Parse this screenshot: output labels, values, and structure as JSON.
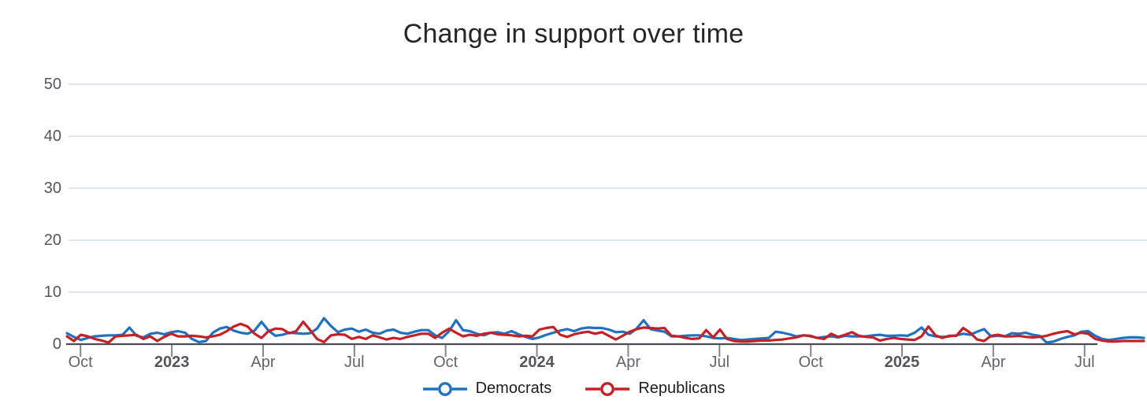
{
  "chart": {
    "title": "Change in support over time",
    "series": [
      {
        "name": "Democrats",
        "color": "#2171c2"
      },
      {
        "name": "Republicans",
        "color": "#c42126"
      }
    ]
  },
  "chart_data": {
    "type": "line",
    "title": "Change in support over time",
    "xlabel": "",
    "ylabel": "",
    "ylim": [
      0,
      50
    ],
    "y_ticks": [
      0,
      10,
      20,
      30,
      40,
      50
    ],
    "grid": true,
    "legend_position": "bottom-center",
    "x_unit": "weeks (Sep 2022 - Sep 2025)",
    "x_ticks": [
      {
        "label": "Oct",
        "week": 1.95,
        "bold": false
      },
      {
        "label": "2023",
        "week": 15.09,
        "bold": true
      },
      {
        "label": "Apr",
        "week": 28.23,
        "bold": false
      },
      {
        "label": "Jul",
        "week": 41.37,
        "bold": false
      },
      {
        "label": "Oct",
        "week": 54.5,
        "bold": false
      },
      {
        "label": "2024",
        "week": 67.64,
        "bold": true
      },
      {
        "label": "Apr",
        "week": 80.78,
        "bold": false
      },
      {
        "label": "Jul",
        "week": 93.92,
        "bold": false
      },
      {
        "label": "Oct",
        "week": 107.06,
        "bold": false
      },
      {
        "label": "2025",
        "week": 120.19,
        "bold": true
      },
      {
        "label": "Apr",
        "week": 133.33,
        "bold": false
      },
      {
        "label": "Jul",
        "week": 146.47,
        "bold": false
      }
    ],
    "series": [
      {
        "name": "Democrats",
        "color": "#2171c2",
        "values": [
          2.1,
          1.4,
          0.8,
          1.2,
          1.5,
          1.6,
          1.7,
          1.7,
          1.8,
          3.2,
          1.6,
          1.3,
          2.0,
          2.2,
          1.9,
          2.3,
          2.5,
          2.2,
          1.0,
          0.4,
          0.6,
          2.2,
          3.0,
          3.3,
          2.6,
          2.2,
          2.0,
          2.6,
          4.3,
          2.6,
          1.6,
          1.8,
          2.2,
          2.1,
          2.0,
          2.1,
          3.0,
          5.0,
          3.5,
          2.3,
          2.8,
          3.0,
          2.4,
          2.8,
          2.2,
          2.0,
          2.6,
          2.8,
          2.2,
          2.0,
          2.4,
          2.7,
          2.7,
          1.7,
          1.2,
          2.5,
          4.6,
          2.7,
          2.5,
          2.0,
          1.7,
          2.2,
          2.3,
          2.0,
          2.5,
          1.9,
          1.4,
          1.0,
          1.3,
          1.8,
          2.2,
          2.6,
          2.9,
          2.5,
          3.0,
          3.2,
          3.1,
          3.1,
          2.8,
          2.3,
          2.4,
          2.0,
          3.0,
          4.6,
          2.9,
          2.6,
          2.4,
          1.5,
          1.5,
          1.6,
          1.7,
          1.7,
          1.5,
          1.2,
          1.1,
          1.2,
          1.0,
          0.8,
          0.9,
          1.0,
          1.1,
          1.2,
          2.4,
          2.2,
          1.9,
          1.5,
          1.7,
          1.5,
          1.2,
          1.4,
          1.5,
          1.3,
          1.6,
          1.5,
          1.5,
          1.5,
          1.7,
          1.8,
          1.6,
          1.6,
          1.7,
          1.6,
          2.2,
          3.2,
          1.8,
          1.5,
          1.4,
          1.5,
          1.7,
          2.0,
          1.8,
          2.4,
          2.9,
          1.5,
          1.6,
          1.5,
          2.1,
          2.0,
          2.2,
          1.8,
          1.6,
          0.3,
          0.5,
          1.0,
          1.4,
          1.7,
          2.4,
          2.5,
          1.6,
          1.0,
          0.8,
          1.0,
          1.2,
          1.3,
          1.3,
          1.2
        ]
      },
      {
        "name": "Republicans",
        "color": "#c42126",
        "values": [
          1.5,
          0.6,
          1.8,
          1.5,
          1.0,
          0.7,
          0.3,
          1.5,
          1.6,
          1.7,
          1.8,
          1.0,
          1.5,
          0.6,
          1.4,
          2.0,
          1.5,
          1.5,
          1.6,
          1.5,
          1.3,
          1.5,
          1.8,
          2.5,
          3.4,
          3.9,
          3.4,
          2.0,
          1.2,
          2.5,
          3.0,
          2.9,
          2.1,
          2.5,
          4.3,
          2.7,
          1.0,
          0.4,
          1.7,
          1.9,
          1.8,
          1.0,
          1.4,
          1.0,
          1.7,
          1.3,
          0.9,
          1.2,
          1.0,
          1.4,
          1.7,
          2.0,
          2.0,
          1.2,
          2.2,
          3.0,
          2.2,
          1.5,
          1.8,
          1.6,
          2.0,
          2.2,
          1.9,
          1.8,
          1.7,
          1.5,
          1.6,
          1.5,
          2.8,
          3.1,
          3.3,
          1.8,
          1.4,
          1.9,
          2.2,
          2.4,
          2.0,
          2.3,
          1.6,
          0.9,
          1.6,
          2.4,
          2.9,
          3.2,
          3.1,
          3.0,
          3.1,
          1.6,
          1.5,
          1.2,
          1.0,
          1.1,
          2.7,
          1.3,
          2.8,
          1.0,
          0.6,
          0.5,
          0.5,
          0.6,
          0.7,
          0.7,
          0.8,
          0.9,
          1.1,
          1.3,
          1.7,
          1.6,
          1.2,
          1.0,
          2.0,
          1.4,
          1.8,
          2.3,
          1.6,
          1.4,
          1.3,
          0.7,
          1.0,
          1.2,
          1.0,
          0.9,
          0.8,
          1.5,
          3.4,
          1.7,
          1.2,
          1.6,
          1.6,
          3.1,
          2.2,
          0.9,
          0.6,
          1.6,
          1.8,
          1.5,
          1.5,
          1.6,
          1.4,
          1.3,
          1.4,
          1.6,
          2.0,
          2.3,
          2.5,
          1.9,
          2.2,
          2.0,
          1.0,
          0.7,
          0.5,
          0.5,
          0.6,
          0.6,
          0.6,
          0.6
        ]
      }
    ],
    "colors": {
      "gridline": "#dbe3f0",
      "axis_line": "#4b4b52",
      "tick_mark": "#85868c",
      "title_text": "#262626",
      "axis_label_text": "#63646b"
    }
  }
}
